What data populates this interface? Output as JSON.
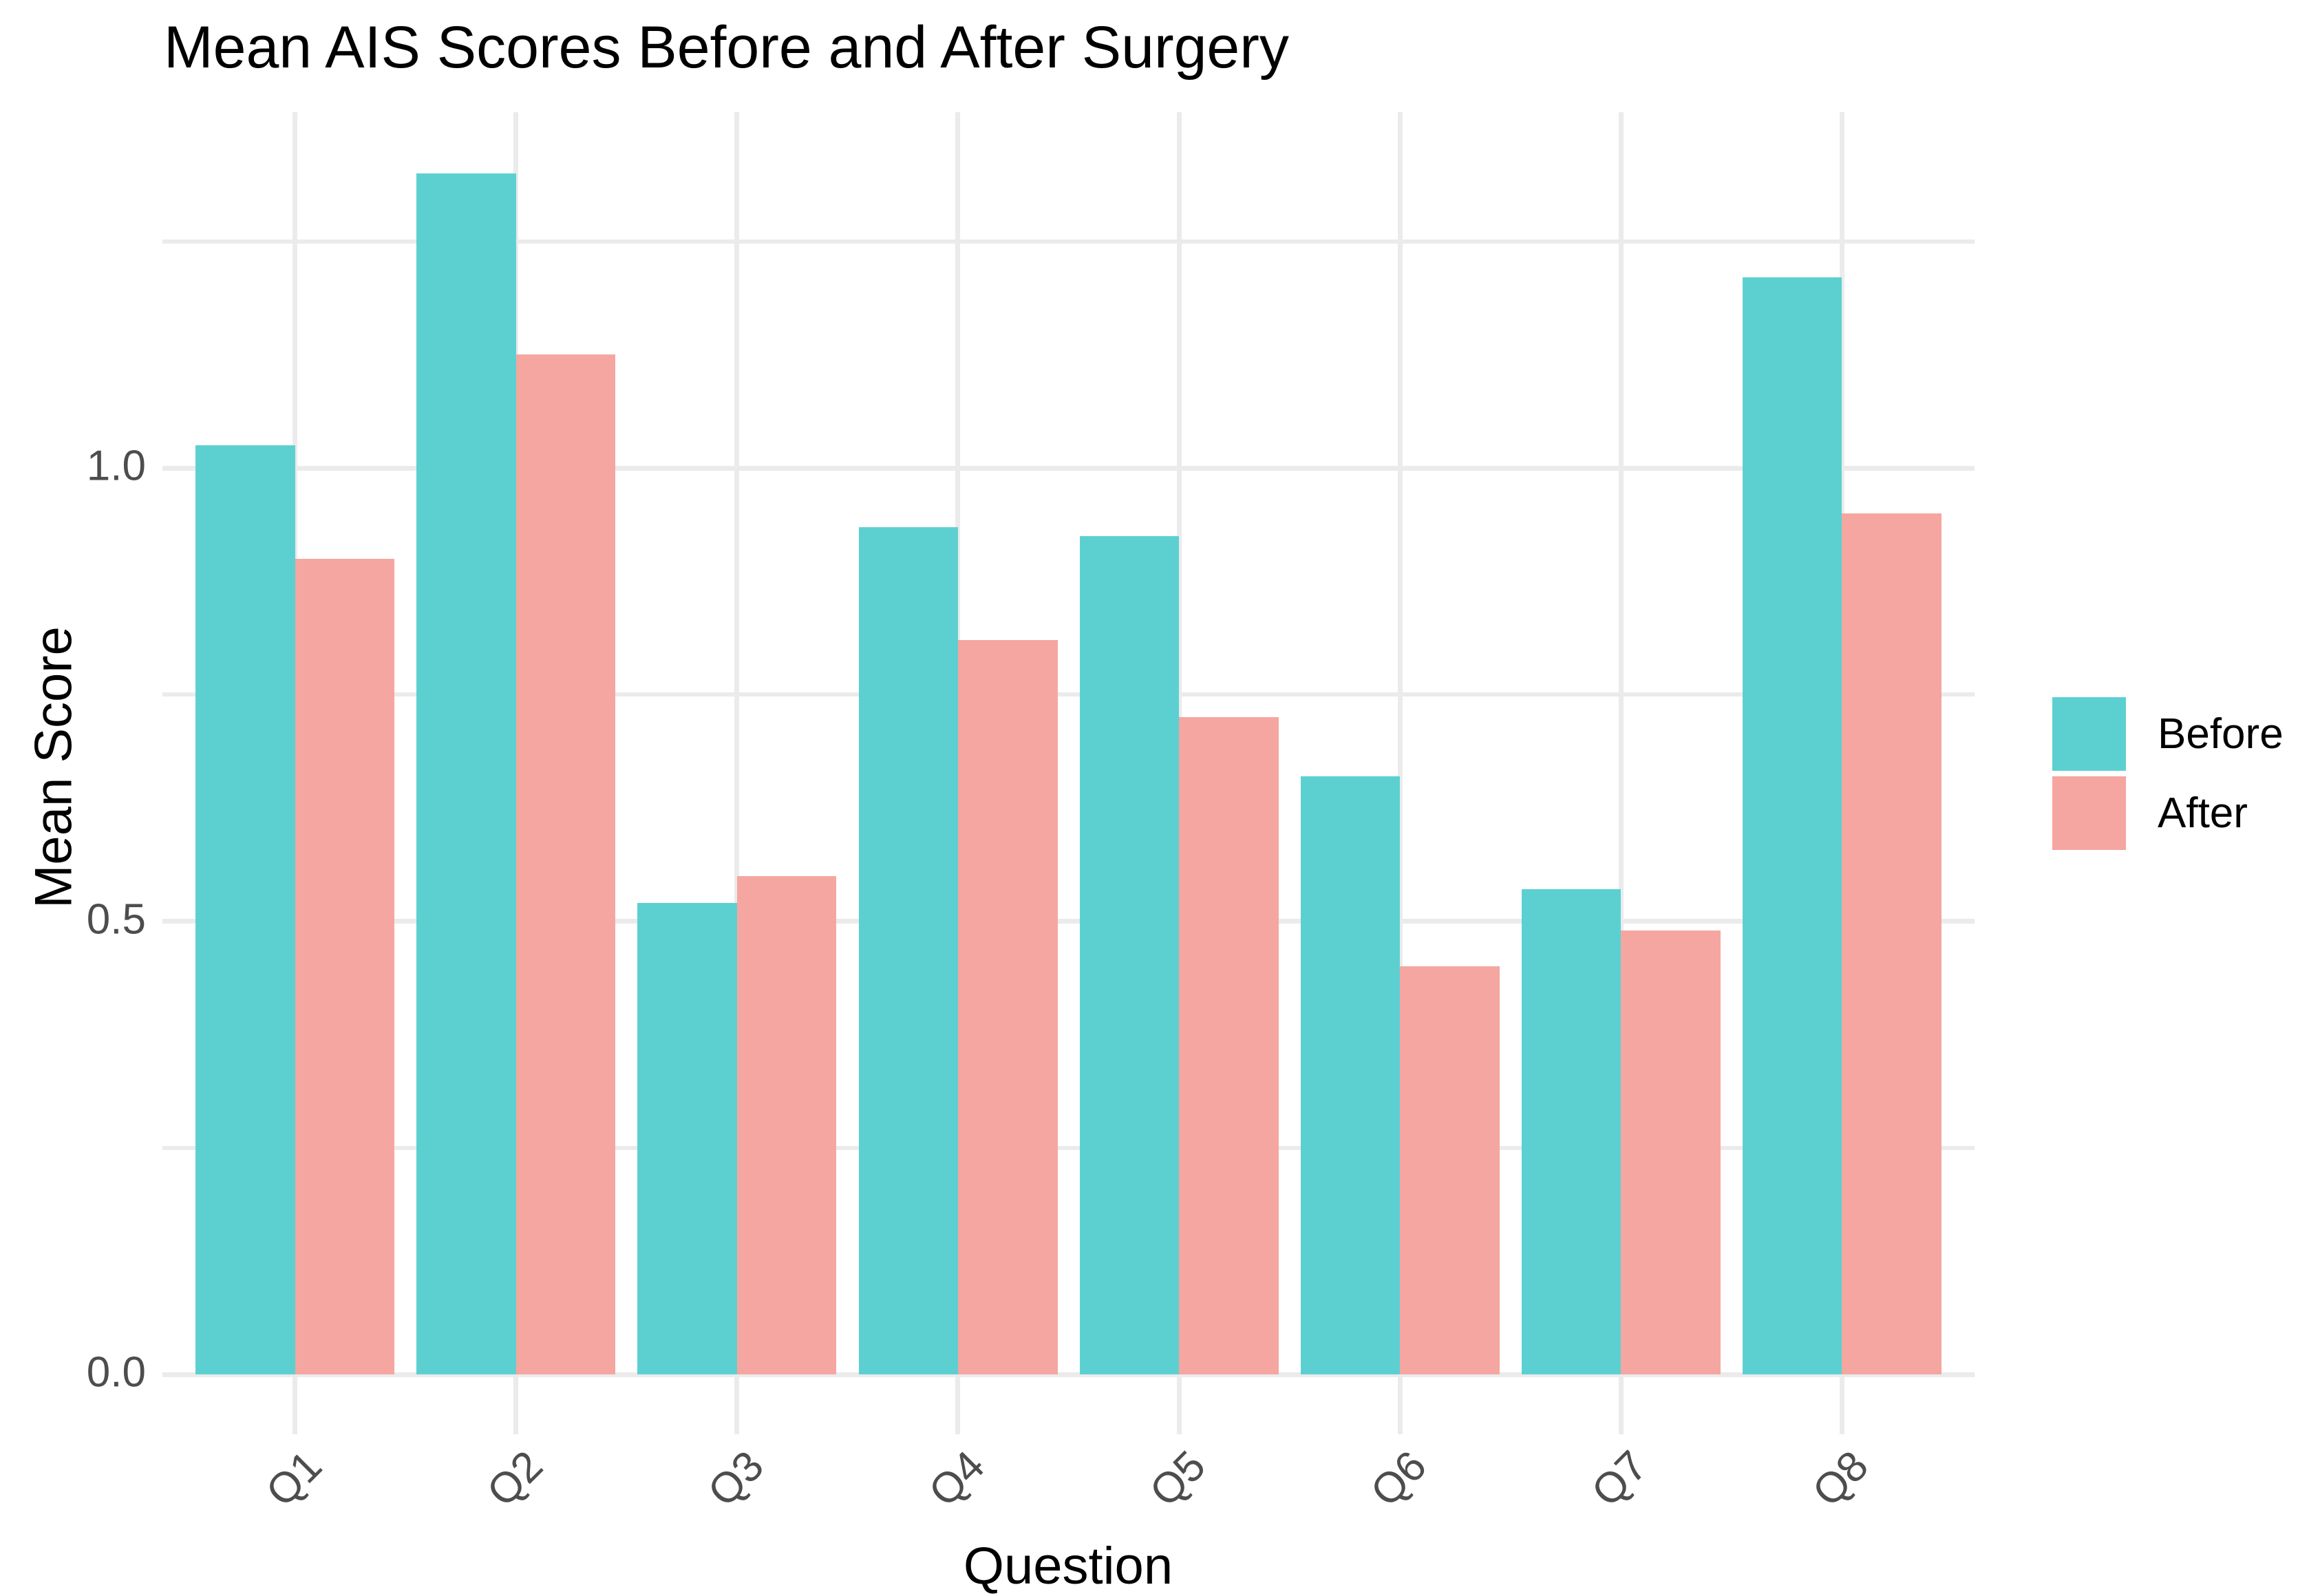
{
  "chart_data": {
    "type": "bar",
    "title": "Mean AIS Scores Before and After Surgery",
    "xlabel": "Question",
    "ylabel": "Mean Score",
    "categories": [
      "Q1",
      "Q2",
      "Q3",
      "Q4",
      "Q5",
      "Q6",
      "Q7",
      "Q8"
    ],
    "series": [
      {
        "name": "Before",
        "color": "#5CD0D1",
        "values": [
          1.025,
          1.325,
          0.52,
          0.935,
          0.925,
          0.66,
          0.535,
          1.21
        ]
      },
      {
        "name": "After",
        "color": "#F5A6A0",
        "values": [
          0.9,
          1.125,
          0.55,
          0.81,
          0.725,
          0.45,
          0.49,
          0.95
        ]
      }
    ],
    "y_axis": {
      "ticks": [
        {
          "value": 0.0,
          "label": "0.0"
        },
        {
          "value": 0.5,
          "label": "0.5"
        },
        {
          "value": 1.0,
          "label": "1.0"
        }
      ],
      "minor_ticks": [
        0.25,
        0.75,
        1.25
      ],
      "ylim": [
        -0.066,
        1.391
      ]
    },
    "legend": {
      "position": "right",
      "entries": [
        "Before",
        "After"
      ]
    },
    "grid": true,
    "styles": {
      "grid_color": "#EBEBEB",
      "tick_label_color": "#4D4D4D",
      "text_color": "#000000",
      "background": "#FFFFFF"
    }
  }
}
